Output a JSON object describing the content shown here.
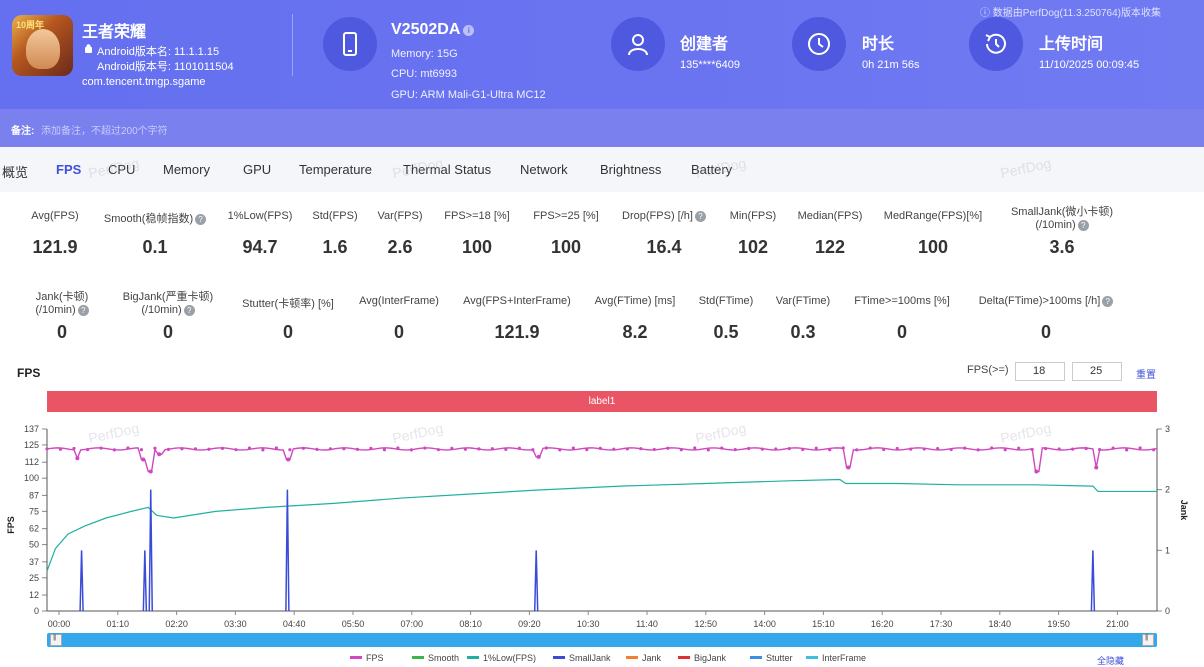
{
  "app": {
    "name": "王者荣耀",
    "android_version": "Android版本名: 11.1.1.15",
    "android_code": "Android版本号: 1101011504",
    "package": "com.tencent.tmgp.sgame",
    "icon_badge": "10周年"
  },
  "device": {
    "model": "V2502DA",
    "memory": "Memory: 15G",
    "cpu": "CPU: mt6993",
    "gpu": "GPU: ARM Mali-G1-Ultra MC12"
  },
  "creator": {
    "label": "创建者",
    "value": "135****6409"
  },
  "duration": {
    "label": "时长",
    "value": "0h 21m 56s"
  },
  "upload": {
    "label": "上传时间",
    "value": "11/10/2025 00:09:45"
  },
  "source_note": "数据由PerfDog(11.3.250764)版本收集",
  "note": {
    "label": "备注:",
    "placeholder": "添加备注，不超过200个字符"
  },
  "tabs": [
    "概览",
    "FPS",
    "CPU",
    "Memory",
    "GPU",
    "Temperature",
    "Thermal Status",
    "Network",
    "Brightness",
    "Battery"
  ],
  "active_tab": "FPS",
  "watermark": "PerfDog",
  "stats_row1": [
    {
      "label": "Avg(FPS)",
      "value": "121.9"
    },
    {
      "label": "Smooth(稳帧指数)",
      "value": "0.1"
    },
    {
      "label": "1%Low(FPS)",
      "value": "94.7"
    },
    {
      "label": "Std(FPS)",
      "value": "1.6"
    },
    {
      "label": "Var(FPS)",
      "value": "2.6"
    },
    {
      "label": "FPS>=18 [%]",
      "value": "100"
    },
    {
      "label": "FPS>=25 [%]",
      "value": "100"
    },
    {
      "label": "Drop(FPS) [/h]",
      "value": "16.4"
    },
    {
      "label": "Min(FPS)",
      "value": "102"
    },
    {
      "label": "Median(FPS)",
      "value": "122"
    },
    {
      "label": "MedRange(FPS)[%]",
      "value": "100"
    },
    {
      "label": "SmallJank(微小卡顿)",
      "label2": "(/10min)",
      "value": "3.6"
    }
  ],
  "stats_row2": [
    {
      "label": "Jank(卡顿)",
      "label2": "(/10min)",
      "value": "0"
    },
    {
      "label": "BigJank(严重卡顿)",
      "label2": "(/10min)",
      "value": "0"
    },
    {
      "label": "Stutter(卡顿率) [%]",
      "value": "0"
    },
    {
      "label": "Avg(InterFrame)",
      "value": "0"
    },
    {
      "label": "Avg(FPS+InterFrame)",
      "value": "121.9"
    },
    {
      "label": "Avg(FTime) [ms]",
      "value": "8.2"
    },
    {
      "label": "Std(FTime)",
      "value": "0.5"
    },
    {
      "label": "Var(FTime)",
      "value": "0.3"
    },
    {
      "label": "FTime>=100ms [%]",
      "value": "0"
    },
    {
      "label": "Delta(FTime)>100ms [/h]",
      "value": "0"
    }
  ],
  "chart_section": {
    "title": "FPS",
    "threshold_label": "FPS(>=)",
    "threshold1": "18",
    "threshold2": "25",
    "reset": "重置",
    "label_bar": "label1",
    "hide_all": "全隐藏"
  },
  "chart_data": {
    "type": "line",
    "ylabel": "FPS",
    "y2label": "Jank",
    "ylim": [
      0,
      137
    ],
    "y_ticks": [
      0,
      12,
      25,
      37,
      50,
      62,
      75,
      87,
      100,
      112,
      125,
      137
    ],
    "y2lim": [
      0,
      3
    ],
    "y2_ticks": [
      0,
      1,
      2,
      3
    ],
    "x_ticks": [
      "00:00",
      "01:10",
      "02:20",
      "03:30",
      "04:40",
      "05:50",
      "07:00",
      "08:10",
      "09:20",
      "10:30",
      "11:40",
      "12:50",
      "14:00",
      "15:10",
      "16:20",
      "17:30",
      "18:40",
      "19:50",
      "21:00"
    ],
    "x_max_seconds": 1316,
    "legend": [
      "FPS",
      "Smooth",
      "1%Low(FPS)",
      "SmallJank",
      "Jank",
      "BigJank",
      "Stutter",
      "InterFrame"
    ],
    "colors": {
      "FPS": "#d048c0",
      "Smooth": "#3cb44b",
      "1%Low(FPS)": "#20b0a0",
      "SmallJank": "#3a4bd8",
      "Jank": "#f08030",
      "BigJank": "#e03030",
      "Stutter": "#3c8fe0",
      "InterFrame": "#40c0e0"
    },
    "series": [
      {
        "name": "FPS",
        "baseline": 122,
        "dips": [
          {
            "t": 36,
            "v": 115
          },
          {
            "t": 114,
            "v": 114
          },
          {
            "t": 123,
            "v": 105
          },
          {
            "t": 133,
            "v": 118
          },
          {
            "t": 286,
            "v": 114
          },
          {
            "t": 583,
            "v": 116
          },
          {
            "t": 950,
            "v": 108
          },
          {
            "t": 1173,
            "v": 105
          },
          {
            "t": 1244,
            "v": 108
          }
        ]
      },
      {
        "name": "1%Low(FPS)",
        "points": [
          [
            0,
            30
          ],
          [
            10,
            47
          ],
          [
            25,
            58
          ],
          [
            45,
            64
          ],
          [
            70,
            70
          ],
          [
            100,
            75
          ],
          [
            120,
            78
          ],
          [
            130,
            72
          ],
          [
            150,
            70
          ],
          [
            200,
            75
          ],
          [
            260,
            78
          ],
          [
            340,
            81
          ],
          [
            420,
            85
          ],
          [
            500,
            88
          ],
          [
            580,
            91
          ],
          [
            680,
            94
          ],
          [
            780,
            96
          ],
          [
            880,
            98
          ],
          [
            940,
            99
          ],
          [
            947,
            96
          ],
          [
            1010,
            96
          ],
          [
            1080,
            95
          ],
          [
            1170,
            95
          ],
          [
            1240,
            94
          ],
          [
            1246,
            90
          ],
          [
            1316,
            90
          ]
        ]
      },
      {
        "name": "SmallJank",
        "spikes": [
          {
            "t": 41,
            "v": 1
          },
          {
            "t": 116,
            "v": 1
          },
          {
            "t": 123,
            "v": 2
          },
          {
            "t": 285,
            "v": 2
          },
          {
            "t": 580,
            "v": 1
          },
          {
            "t": 1240,
            "v": 1
          }
        ]
      }
    ]
  }
}
